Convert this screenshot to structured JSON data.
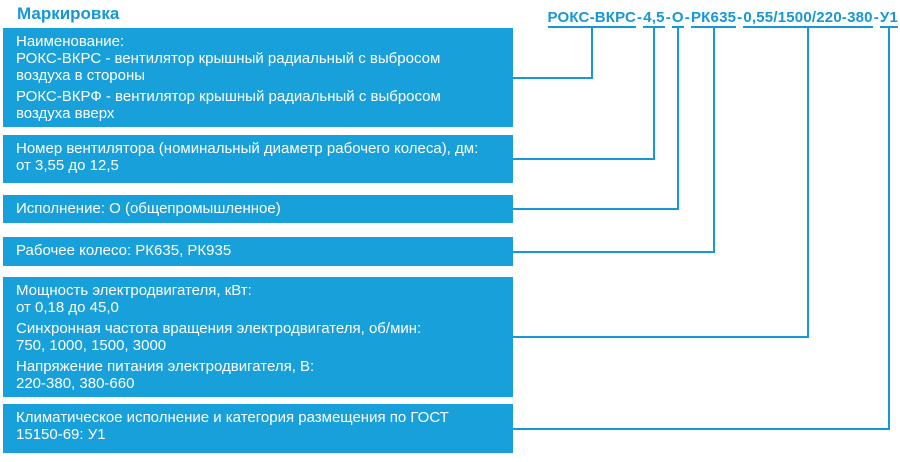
{
  "title": "Маркировка",
  "colors": {
    "accent": "#1697d6",
    "box_fill": "#18a0db",
    "box_text": "#ffffff",
    "background": "#ffffff"
  },
  "code": {
    "full": "РОКС-ВКРС-4,5-О-РК635-0,55/1500/220-380-У1",
    "separator": "-",
    "segments": [
      "РОКС-ВКРС",
      "4,5",
      "О",
      "РК635",
      "0,55/1500/220-380",
      "У1"
    ]
  },
  "boxes": [
    {
      "id": "naming",
      "maps_to_segment": "РОКС-ВКРС",
      "lines": [
        "Наименование:",
        "РОКС-ВКРС - вентилятор крышный радиальный с выбросом",
        "воздуха в стороны",
        "РОКС-ВКРФ - вентилятор крышный радиальный с выбросом",
        "воздуха вверх"
      ]
    },
    {
      "id": "fan-size",
      "maps_to_segment": "4,5",
      "lines": [
        "Номер вентилятора (номинальный диаметр рабочего колеса), дм:",
        "от 3,55 до 12,5"
      ]
    },
    {
      "id": "design",
      "maps_to_segment": "О",
      "lines": [
        "Исполнение: О (общепромышленное)"
      ]
    },
    {
      "id": "impeller",
      "maps_to_segment": "РК635",
      "lines": [
        "Рабочее колесо: РК635, РК935"
      ]
    },
    {
      "id": "motor",
      "maps_to_segment": "0,55/1500/220-380",
      "lines": [
        "Мощность электродвигателя, кВт:",
        "от 0,18 до 45,0",
        "Синхронная частота вращения электродвигателя, об/мин:",
        "750, 1000, 1500, 3000",
        "Напряжение питания электродвигателя, В:",
        "220-380, 380-660"
      ]
    },
    {
      "id": "climate",
      "maps_to_segment": "У1",
      "lines": [
        "Климатическое исполнение и категория размещения по ГОСТ",
        "15150-69: У1"
      ]
    }
  ]
}
